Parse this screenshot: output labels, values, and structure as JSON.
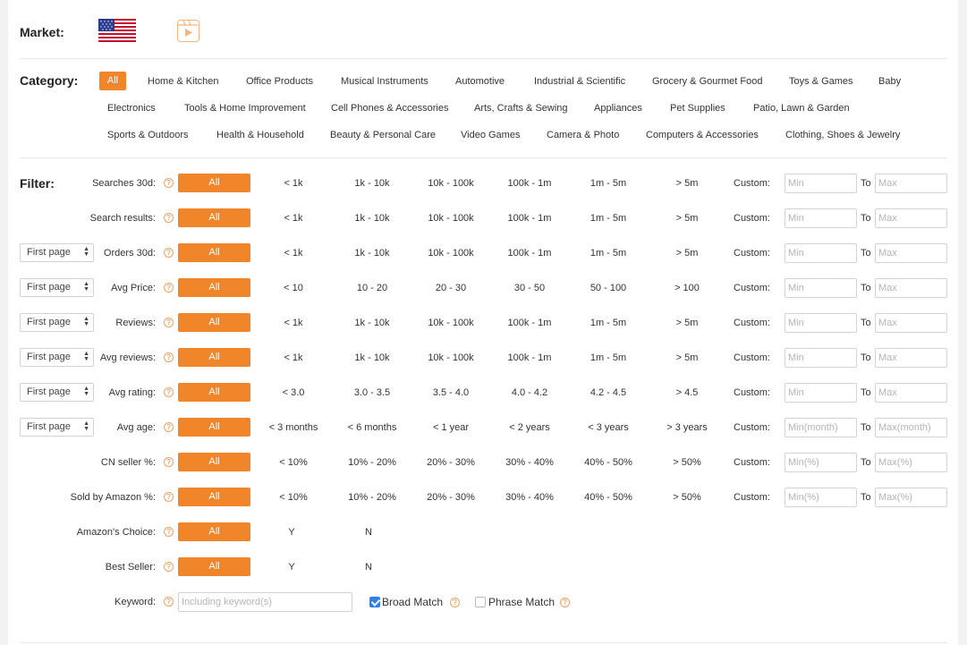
{
  "market": {
    "label": "Market:",
    "flag_icon": "us-flag-icon",
    "video_icon": "video-play-icon"
  },
  "category": {
    "label": "Category:",
    "items": [
      "All",
      "Home & Kitchen",
      "Office Products",
      "Musical Instruments",
      "Automotive",
      "Industrial & Scientific",
      "Grocery & Gourmet Food",
      "Toys & Games",
      "Baby",
      "Electronics",
      "Tools & Home Improvement",
      "Cell Phones & Accessories",
      "Arts, Crafts & Sewing",
      "Appliances",
      "Pet Supplies",
      "Patio, Lawn & Garden",
      "Sports & Outdoors",
      "Health & Household",
      "Beauty & Personal Care",
      "Video Games",
      "Camera & Photo",
      "Computers & Accessories",
      "Clothing, Shoes & Jewelry"
    ],
    "selected": "All"
  },
  "filter": {
    "label": "Filter:",
    "all_label": "All",
    "custom_label": "Custom:",
    "to_label": "To",
    "rows": [
      {
        "label": "Searches 30d:",
        "select": null,
        "options": [
          "< 1k",
          "1k - 10k",
          "10k - 100k",
          "100k - 1m",
          "1m - 5m",
          "> 5m"
        ],
        "min": "Min",
        "max": "Max"
      },
      {
        "label": "Search results:",
        "select": null,
        "options": [
          "< 1k",
          "1k - 10k",
          "10k - 100k",
          "100k - 1m",
          "1m - 5m",
          "> 5m"
        ],
        "min": "Min",
        "max": "Max"
      },
      {
        "label": "Orders 30d:",
        "select": "First page",
        "options": [
          "< 1k",
          "1k - 10k",
          "10k - 100k",
          "100k - 1m",
          "1m - 5m",
          "> 5m"
        ],
        "min": "Min",
        "max": "Max"
      },
      {
        "label": "Avg Price:",
        "select": "First page",
        "options": [
          "< 10",
          "10 - 20",
          "20 - 30",
          "30 - 50",
          "50 - 100",
          "> 100"
        ],
        "min": "Min",
        "max": "Max"
      },
      {
        "label": "Reviews:",
        "select": "First page",
        "options": [
          "< 1k",
          "1k - 10k",
          "10k - 100k",
          "100k - 1m",
          "1m - 5m",
          "> 5m"
        ],
        "min": "Min",
        "max": "Max"
      },
      {
        "label": "Avg reviews:",
        "select": "First page",
        "options": [
          "< 1k",
          "1k - 10k",
          "10k - 100k",
          "100k - 1m",
          "1m - 5m",
          "> 5m"
        ],
        "min": "Min",
        "max": "Max"
      },
      {
        "label": "Avg rating:",
        "select": "First page",
        "options": [
          "< 3.0",
          "3.0 - 3.5",
          "3.5 - 4.0",
          "4.0 - 4.2",
          "4.2 - 4.5",
          "> 4.5"
        ],
        "min": "Min",
        "max": "Max"
      },
      {
        "label": "Avg age:",
        "select": "First page",
        "options": [
          "< 3 months",
          "< 6 months",
          "< 1 year",
          "< 2 years",
          "< 3 years",
          "> 3 years"
        ],
        "min": "Min(month)",
        "max": "Max(month)"
      },
      {
        "label": "CN seller %:",
        "select": null,
        "options": [
          "< 10%",
          "10% - 20%",
          "20% - 30%",
          "30% - 40%",
          "40% - 50%",
          "> 50%"
        ],
        "min": "Min(%)",
        "max": "Max(%)"
      },
      {
        "label": "Sold by Amazon %:",
        "select": null,
        "options": [
          "< 10%",
          "10% - 20%",
          "20% - 30%",
          "30% - 40%",
          "40% - 50%",
          "> 50%"
        ],
        "min": "Min(%)",
        "max": "Max(%)"
      },
      {
        "label": "Amazon's Choice:",
        "select": null,
        "options": [
          "Y",
          "N"
        ],
        "min": null,
        "max": null
      },
      {
        "label": "Best Seller:",
        "select": null,
        "options": [
          "Y",
          "N"
        ],
        "min": null,
        "max": null
      }
    ],
    "keyword": {
      "label": "Keyword:",
      "placeholder": "Including keyword(s)",
      "broad_match": "Broad Match",
      "broad_checked": true,
      "phrase_match": "Phrase Match",
      "phrase_checked": false
    }
  },
  "colors": {
    "accent": "#f0852a",
    "checkbox": "#2f7ff0"
  }
}
